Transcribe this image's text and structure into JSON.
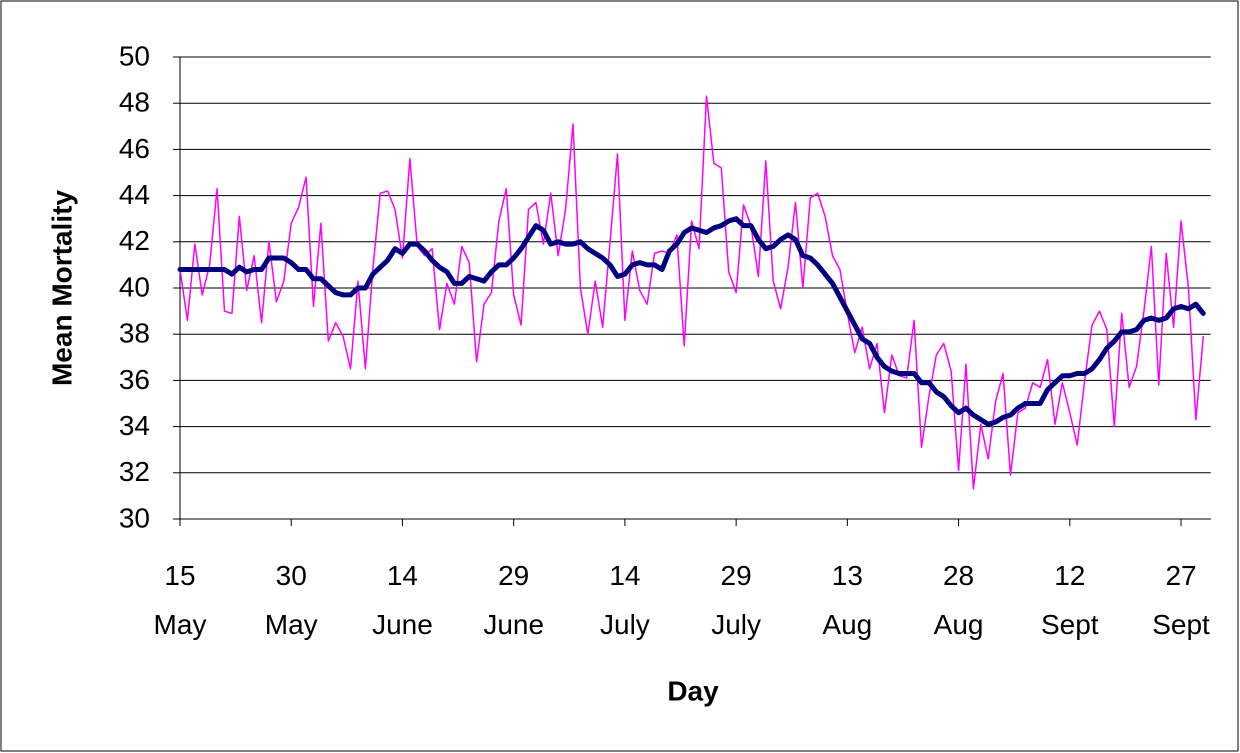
{
  "chart_data": {
    "type": "line",
    "x_label": "Day",
    "y_label": "Mean Mortality",
    "categories": [
      "15 May",
      null,
      null,
      null,
      null,
      null,
      null,
      null,
      null,
      null,
      null,
      null,
      null,
      null,
      null,
      "30 May",
      null,
      null,
      null,
      null,
      null,
      null,
      null,
      null,
      null,
      null,
      null,
      null,
      null,
      null,
      "14 June",
      null,
      null,
      null,
      null,
      null,
      null,
      null,
      null,
      null,
      null,
      null,
      null,
      null,
      null,
      "29 June",
      null,
      null,
      null,
      null,
      null,
      null,
      null,
      null,
      null,
      null,
      null,
      null,
      null,
      null,
      "14 July",
      null,
      null,
      null,
      null,
      null,
      null,
      null,
      null,
      null,
      null,
      null,
      null,
      null,
      null,
      "29 July",
      null,
      null,
      null,
      null,
      null,
      null,
      null,
      null,
      null,
      null,
      null,
      null,
      null,
      null,
      "13 Aug",
      null,
      null,
      null,
      null,
      null,
      null,
      null,
      null,
      null,
      null,
      null,
      null,
      null,
      null,
      "28 Aug",
      null,
      null,
      null,
      null,
      null,
      null,
      null,
      null,
      null,
      null,
      null,
      null,
      null,
      null,
      "12 Sept",
      null,
      null,
      null,
      null,
      null,
      null,
      null,
      null,
      null,
      null,
      null,
      null,
      null,
      null,
      "27 Sept",
      null,
      null,
      null
    ],
    "series": [
      {
        "color": "#ff00ff",
        "width": 1.5,
        "values": [
          40.8,
          38.6,
          41.9,
          39.7,
          41.0,
          44.3,
          39.0,
          38.9,
          43.1,
          39.9,
          41.4,
          38.5,
          42.0,
          39.4,
          40.3,
          42.8,
          43.5,
          44.8,
          39.2,
          42.8,
          37.7,
          38.5,
          37.9,
          36.5,
          40.3,
          36.5,
          40.8,
          44.1,
          44.2,
          43.4,
          41.3,
          45.6,
          41.8,
          41.4,
          41.7,
          38.2,
          40.2,
          39.3,
          41.8,
          41.1,
          36.8,
          39.3,
          39.8,
          42.9,
          44.3,
          39.7,
          38.4,
          43.4,
          43.7,
          41.9,
          44.1,
          41.4,
          43.4,
          47.1,
          40.0,
          38.0,
          40.3,
          38.3,
          42.0,
          45.8,
          38.6,
          41.6,
          39.9,
          39.3,
          41.5,
          41.6,
          41.5,
          42.3,
          37.5,
          42.9,
          41.7,
          48.3,
          45.4,
          45.2,
          40.7,
          39.8,
          43.6,
          42.7,
          40.5,
          45.5,
          40.3,
          39.1,
          40.9,
          43.7,
          40.0,
          43.9,
          44.1,
          43.1,
          41.4,
          40.8,
          38.9,
          37.2,
          38.3,
          36.5,
          37.6,
          34.6,
          37.1,
          36.2,
          36.1,
          38.6,
          33.1,
          35.3,
          37.1,
          37.6,
          36.4,
          32.1,
          36.7,
          31.3,
          34.1,
          32.6,
          35.1,
          36.3,
          31.9,
          34.6,
          34.8,
          35.9,
          35.7,
          36.9,
          34.1,
          35.9,
          34.6,
          33.2,
          36.0,
          38.4,
          39.0,
          38.2,
          34.0,
          38.9,
          35.7,
          36.6,
          39.0,
          41.8,
          35.8,
          41.5,
          38.3,
          42.9,
          40.0,
          34.3,
          37.9
        ]
      },
      {
        "color": "#000080",
        "width": 5,
        "values": [
          40.8,
          40.8,
          40.8,
          40.8,
          40.8,
          40.8,
          40.8,
          40.6,
          40.9,
          40.7,
          40.8,
          40.8,
          41.3,
          41.3,
          41.3,
          41.1,
          40.8,
          40.8,
          40.4,
          40.4,
          40.1,
          39.8,
          39.7,
          39.7,
          40.0,
          40.0,
          40.6,
          40.9,
          41.2,
          41.7,
          41.5,
          41.9,
          41.9,
          41.6,
          41.2,
          40.9,
          40.7,
          40.2,
          40.2,
          40.5,
          40.4,
          40.3,
          40.7,
          41.0,
          41.0,
          41.3,
          41.7,
          42.2,
          42.7,
          42.5,
          41.9,
          42.0,
          41.9,
          41.9,
          42.0,
          41.7,
          41.5,
          41.3,
          41.0,
          40.5,
          40.6,
          41.0,
          41.1,
          41.0,
          41.0,
          40.8,
          41.6,
          41.9,
          42.4,
          42.6,
          42.5,
          42.4,
          42.6,
          42.7,
          42.9,
          43.0,
          42.7,
          42.7,
          42.1,
          41.7,
          41.8,
          42.1,
          42.3,
          42.1,
          41.4,
          41.3,
          41.0,
          40.6,
          40.2,
          39.6,
          39.0,
          38.4,
          37.8,
          37.6,
          37.0,
          36.6,
          36.4,
          36.3,
          36.3,
          36.3,
          35.9,
          35.9,
          35.5,
          35.3,
          34.9,
          34.6,
          34.8,
          34.5,
          34.3,
          34.1,
          34.2,
          34.4,
          34.5,
          34.8,
          35.0,
          35.0,
          35.0,
          35.6,
          35.9,
          36.2,
          36.2,
          36.3,
          36.3,
          36.5,
          36.9,
          37.4,
          37.7,
          38.1,
          38.1,
          38.2,
          38.6,
          38.7,
          38.6,
          38.7,
          39.1,
          39.2,
          39.1,
          39.3,
          38.9
        ]
      }
    ],
    "ylim": [
      30,
      50
    ],
    "yticks": [
      30,
      32,
      34,
      36,
      38,
      40,
      42,
      44,
      46,
      48,
      50
    ],
    "grid": true
  }
}
